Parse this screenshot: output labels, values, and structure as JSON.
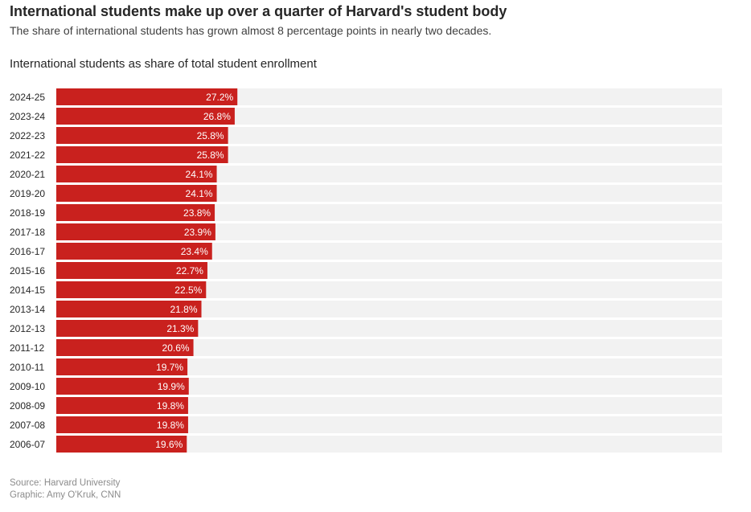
{
  "header": {
    "title": "International students make up over a quarter of Harvard's student body",
    "subtitle": "The share of international students has grown almost 8 percentage points in nearly two decades.",
    "chart_title": "International students as share of total student enrollment"
  },
  "footer": {
    "source": "Source: Harvard University",
    "credit": "Graphic: Amy O'Kruk, CNN"
  },
  "colors": {
    "bar": "#c9211e",
    "track": "#f2f2f2",
    "label_text": "#ffffff",
    "category_text": "#262626"
  },
  "chart_data": {
    "type": "bar",
    "orientation": "horizontal",
    "title": "International students as share of total student enrollment",
    "categories": [
      "2024-25",
      "2023-24",
      "2022-23",
      "2021-22",
      "2020-21",
      "2019-20",
      "2018-19",
      "2017-18",
      "2016-17",
      "2015-16",
      "2014-15",
      "2013-14",
      "2012-13",
      "2011-12",
      "2010-11",
      "2009-10",
      "2008-09",
      "2007-08",
      "2006-07"
    ],
    "values": [
      27.2,
      26.8,
      25.8,
      25.8,
      24.1,
      24.1,
      23.8,
      23.9,
      23.4,
      22.7,
      22.5,
      21.8,
      21.3,
      20.6,
      19.7,
      19.9,
      19.8,
      19.8,
      19.6
    ],
    "labels": [
      "27.2%",
      "26.8%",
      "25.8%",
      "25.8%",
      "24.1%",
      "24.1%",
      "23.8%",
      "23.9%",
      "23.4%",
      "22.7%",
      "22.5%",
      "21.8%",
      "21.3%",
      "20.6%",
      "19.7%",
      "19.9%",
      "19.8%",
      "19.8%",
      "19.6%"
    ],
    "xlim": [
      0,
      100
    ],
    "unit": "%",
    "grid": false
  }
}
